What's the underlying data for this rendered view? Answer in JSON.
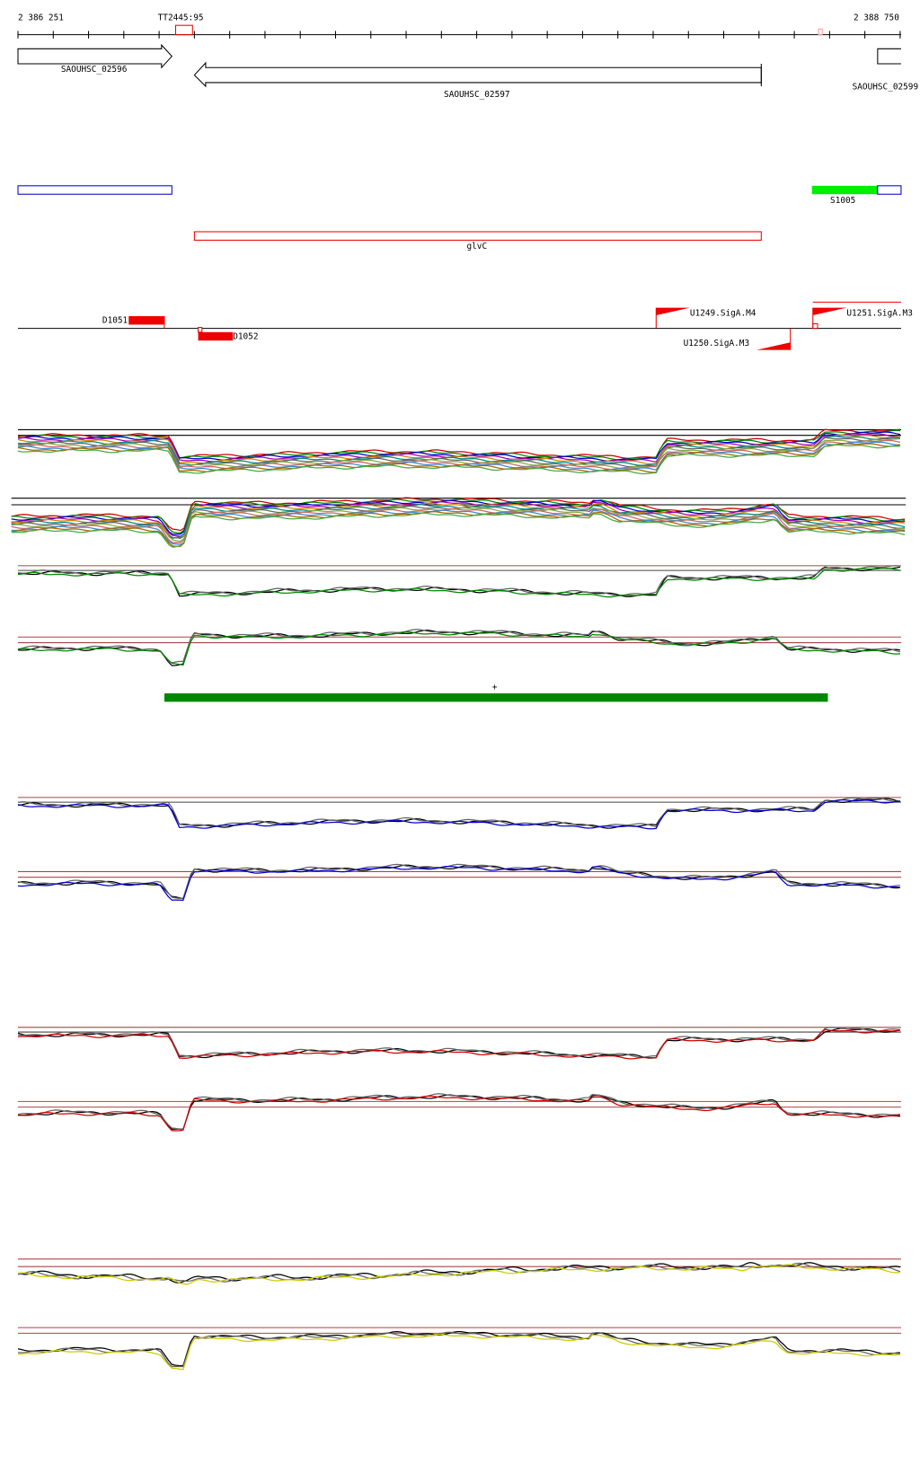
{
  "ruler": {
    "start": "2 386 251",
    "end": "2 388 750",
    "marker": "TT2445:95"
  },
  "genes": [
    "SAOUHSC_02596",
    "SAOUHSC_02597",
    "SAOUHSC_02599"
  ],
  "features": {
    "s_label": "S1005",
    "glv_label": "glvC"
  },
  "peaks": [
    "D1051",
    "D1052"
  ],
  "promoters": [
    "U1249.SigA.M4",
    "U1251.SigA.M3",
    "U1250.SigA.M3"
  ],
  "strand": "+"
}
